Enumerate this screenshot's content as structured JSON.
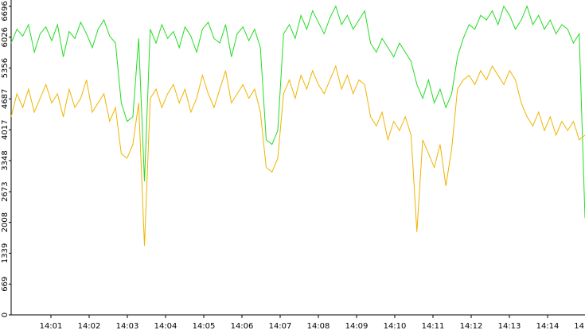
{
  "chart_data": {
    "type": "line",
    "xticks": [
      "14:01",
      "14:02",
      "14:03",
      "14:04",
      "14:05",
      "14:06",
      "14:07",
      "14:08",
      "14:09",
      "14:10",
      "14:11",
      "14:12",
      "14:13",
      "14:14",
      "14"
    ],
    "ylim": [
      0,
      6696
    ],
    "yticks": [
      0,
      669,
      1339,
      2008,
      2673,
      3348,
      4017,
      4687,
      5356,
      6026,
      6696
    ],
    "series": [
      {
        "color": "#22dd22",
        "values": [
          5900,
          6200,
          6050,
          6300,
          5700,
          6100,
          6250,
          5950,
          6300,
          5600,
          6150,
          6000,
          6350,
          6100,
          5800,
          6200,
          6400,
          6050,
          5900,
          4600,
          4200,
          4300,
          6000,
          2900,
          6200,
          5900,
          6300,
          6000,
          6150,
          5800,
          6250,
          6050,
          5700,
          6200,
          6350,
          6000,
          5900,
          6300,
          5600,
          6100,
          6250,
          5950,
          6200,
          5800,
          3800,
          3700,
          4000,
          6100,
          6300,
          6000,
          6500,
          6200,
          6600,
          6350,
          6100,
          6450,
          6700,
          6300,
          6500,
          6200,
          6400,
          6600,
          5900,
          5700,
          6000,
          5800,
          5600,
          5900,
          5700,
          5500,
          5000,
          4700,
          5100,
          4600,
          4900,
          4500,
          4800,
          5600,
          6000,
          6300,
          6200,
          6500,
          6400,
          6600,
          6300,
          6700,
          6500,
          6200,
          6400,
          6700,
          6300,
          6500,
          6200,
          6400,
          6100,
          6300,
          6200,
          5900,
          6100,
          2100
        ]
      },
      {
        "color": "#f0b400",
        "values": [
          4300,
          4800,
          4500,
          4900,
          4400,
          4700,
          5000,
          4600,
          4800,
          4300,
          4900,
          4500,
          4700,
          5100,
          4400,
          4600,
          4800,
          4200,
          4500,
          3500,
          3400,
          3700,
          4600,
          1500,
          4700,
          4900,
          4500,
          4800,
          5000,
          4600,
          4900,
          4400,
          4700,
          5200,
          4800,
          4500,
          4900,
          5300,
          4600,
          4800,
          5000,
          4700,
          4900,
          4400,
          3200,
          3100,
          3400,
          4800,
          5100,
          4700,
          5200,
          4900,
          5300,
          5000,
          4800,
          5100,
          5400,
          4900,
          5200,
          4800,
          5100,
          5000,
          4300,
          4100,
          4400,
          3800,
          4200,
          4000,
          4300,
          3900,
          1800,
          3800,
          3500,
          3200,
          3700,
          2800,
          3600,
          4900,
          5100,
          5200,
          5000,
          5300,
          5100,
          5400,
          5200,
          5000,
          5300,
          5100,
          4600,
          4300,
          4100,
          4400,
          4000,
          4300,
          3900,
          4200,
          4000,
          4200,
          3800,
          3900
        ]
      }
    ]
  }
}
